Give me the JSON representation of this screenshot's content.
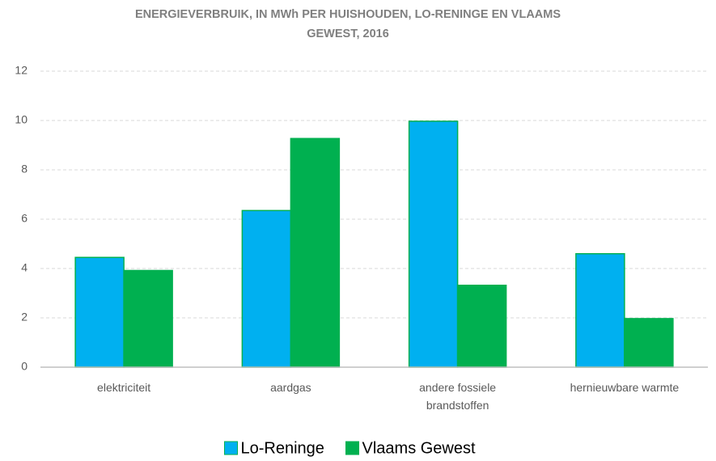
{
  "chart_data": {
    "type": "bar",
    "title": "ENERGIEVERBRUIK, IN MWh PER HUISHOUDEN, LO-RENINGE EN VLAAMS GEWEST, 2016",
    "categories": [
      "elektriciteit",
      "aardgas",
      "andere fossiele brandstoffen",
      "hernieuwbare warmte"
    ],
    "series": [
      {
        "name": "Lo-Reninge",
        "color": "#00b0f0",
        "values": [
          4.45,
          6.35,
          9.97,
          4.6
        ]
      },
      {
        "name": "Vlaams Gewest",
        "color": "#00b050",
        "values": [
          3.92,
          9.27,
          3.32,
          1.97
        ]
      }
    ],
    "ylim": [
      0,
      12
    ],
    "yticks": [
      0,
      2,
      4,
      6,
      8,
      10,
      12
    ],
    "grid": true,
    "legend": "bottom"
  }
}
